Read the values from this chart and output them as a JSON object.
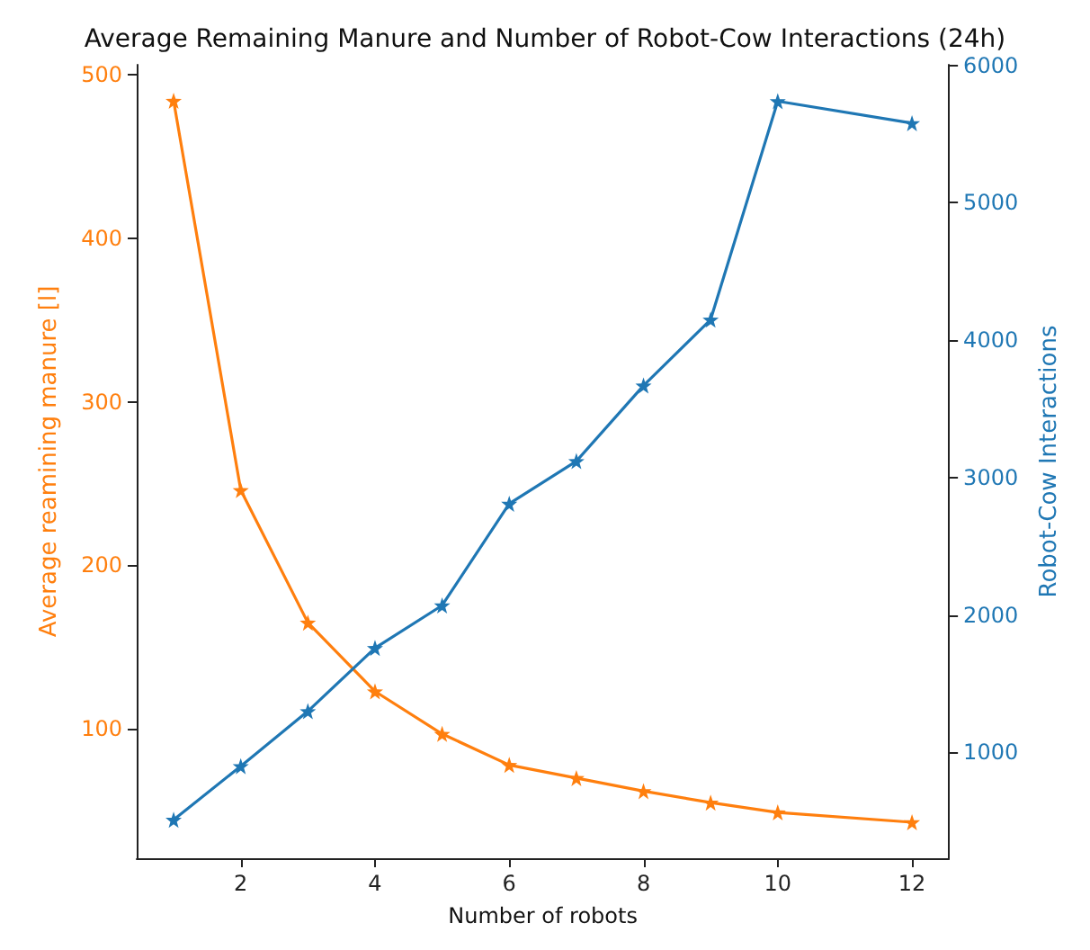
{
  "chart_data": {
    "type": "line",
    "title": "Average Remaining Manure and Number of Robot-Cow Interactions (24h)",
    "xlabel": "Number of robots",
    "ylabel": "Average reamining manure [l]",
    "y2label": "Robot-Cow Interactions",
    "xlim": [
      0.45,
      12.55
    ],
    "xticks": [
      2,
      4,
      6,
      8,
      10,
      12
    ],
    "ylim": [
      21,
      506
    ],
    "yticks": [
      100,
      200,
      300,
      400,
      500
    ],
    "y2lim": [
      230,
      6005
    ],
    "y2ticks": [
      1000,
      2000,
      3000,
      4000,
      5000,
      6000
    ],
    "grid": false,
    "marker": "star",
    "line_style": "solid",
    "series": [
      {
        "color": "#ff7f0e",
        "x": [
          1,
          2,
          3,
          4,
          5,
          6,
          7,
          8,
          9,
          10,
          12
        ],
        "values": [
          484,
          246,
          165,
          123,
          97,
          78,
          70,
          62,
          55,
          49,
          43
        ]
      },
      {
        "color": "#1f77b4",
        "axis": "y2",
        "x": [
          1,
          2,
          3,
          4,
          5,
          6,
          7,
          8,
          9,
          10,
          12
        ],
        "values": [
          510,
          900,
          1300,
          1760,
          2070,
          2810,
          3120,
          3670,
          4150,
          5740,
          5580
        ]
      }
    ]
  }
}
